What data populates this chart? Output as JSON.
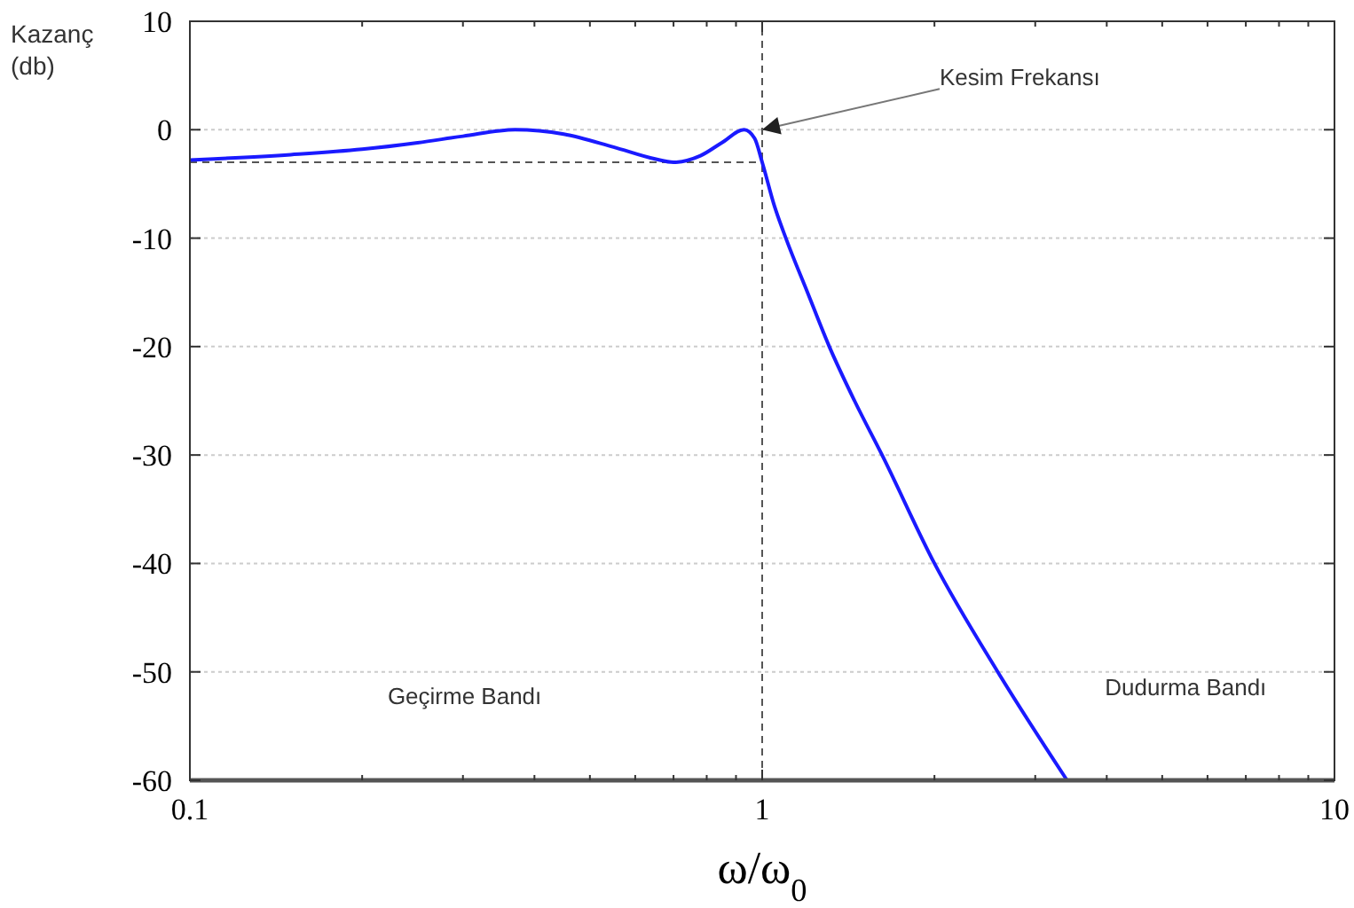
{
  "chart_data": {
    "type": "line",
    "xlabel": "ω/ω$_{0}$",
    "ylabel": "Kazanç\n(db)",
    "log": "x",
    "grid": "y",
    "marker": "none",
    "line_style": "solid",
    "xlim": [
      0.1,
      10
    ],
    "ylim": [
      -60,
      10
    ],
    "xticks": [
      0.1,
      {
        "value": 0.2,
        "label": null
      },
      {
        "value": 0.3,
        "label": null
      },
      {
        "value": 0.4,
        "label": null
      },
      {
        "value": 0.5,
        "label": null
      },
      {
        "value": 0.6,
        "label": null
      },
      {
        "value": 0.7,
        "label": null
      },
      {
        "value": 0.8,
        "label": null
      },
      {
        "value": 0.9,
        "label": null
      },
      1,
      {
        "value": 2,
        "label": null
      },
      {
        "value": 3,
        "label": null
      },
      {
        "value": 4,
        "label": null
      },
      {
        "value": 5,
        "label": null
      },
      {
        "value": 6,
        "label": null
      },
      {
        "value": 7,
        "label": null
      },
      {
        "value": 8,
        "label": null
      },
      {
        "value": 9,
        "label": null
      },
      10
    ],
    "yticks": [
      -60,
      -50,
      -40,
      -30,
      -20,
      -10,
      0,
      10
    ],
    "series": [
      {
        "color": "#1a1aff",
        "x": [
          0.1,
          0.15,
          0.2,
          0.25,
          0.3,
          0.37,
          0.45,
          0.55,
          0.65,
          0.7,
          0.78,
          0.85,
          0.93,
          0.97,
          1.0,
          1.05,
          1.1,
          1.2,
          1.31,
          1.45,
          1.62,
          2.0,
          2.58,
          3.41
        ],
        "values": [
          -2.8,
          -2.3,
          -1.8,
          -1.2,
          -0.6,
          0,
          -0.4,
          -1.6,
          -2.7,
          -3,
          -2.4,
          -1.2,
          0,
          -0.8,
          -3,
          -7,
          -10,
          -15,
          -20,
          -25,
          -30,
          -40,
          -50,
          -60
        ]
      }
    ],
    "ref_lines": [
      {
        "axis": "y",
        "value": -3,
        "color": "#555555",
        "line_style": "dashed"
      },
      {
        "axis": "x",
        "value": 1,
        "color": "#555555",
        "line_style": "dashed"
      }
    ],
    "annotations": [
      {
        "text": "Kesim Frekansı",
        "x": 1,
        "y": 0
      },
      "Geçirme Bandı",
      "Dudurma Bandı"
    ]
  }
}
